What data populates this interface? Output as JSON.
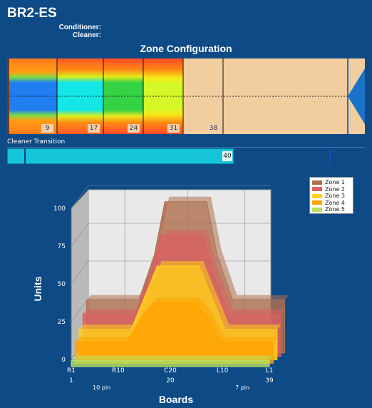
{
  "header": {
    "title": "BR2-ES",
    "conditioner_label": "Conditioner:",
    "cleaner_label": "Cleaner:"
  },
  "zone_config": {
    "title": "Zone Configuration",
    "markers": [
      "9",
      "17",
      "24",
      "31",
      "38"
    ]
  },
  "cleaner_transition": {
    "label": "Cleaner Transition",
    "value": "40"
  },
  "chart_data": {
    "type": "area",
    "ylabel": "Units",
    "xlabel": "Boards",
    "yticks": [
      "0",
      "25",
      "50",
      "75",
      "100"
    ],
    "ylim": [
      0,
      100
    ],
    "xticks_top": [
      "R1",
      "R10",
      "C20",
      "L10",
      "L1"
    ],
    "xticks_bottom": [
      "1",
      "20",
      "39"
    ],
    "pin_labels": [
      "10 pin",
      "7 pin"
    ],
    "x": [
      1,
      8,
      11,
      14,
      16,
      24,
      26,
      29,
      32,
      39
    ],
    "series": [
      {
        "name": "Zone 1",
        "color": "#b07050",
        "values": [
          35,
          35,
          35,
          65,
          100,
          100,
          65,
          35,
          35,
          35
        ]
      },
      {
        "name": "Zone 2",
        "color": "#d86060",
        "values": [
          28,
          28,
          28,
          55,
          80,
          80,
          55,
          28,
          28,
          28
        ]
      },
      {
        "name": "Zone 3",
        "color": "#ffd21a",
        "values": [
          20,
          20,
          20,
          45,
          62,
          62,
          45,
          20,
          20,
          20
        ]
      },
      {
        "name": "Zone 4",
        "color": "#ffa200",
        "values": [
          14,
          14,
          14,
          32,
          40,
          40,
          32,
          14,
          14,
          14
        ]
      },
      {
        "name": "Zone 5",
        "color": "#b8df60",
        "values": [
          4,
          4,
          4,
          4,
          4,
          4,
          4,
          4,
          4,
          4
        ]
      }
    ]
  }
}
